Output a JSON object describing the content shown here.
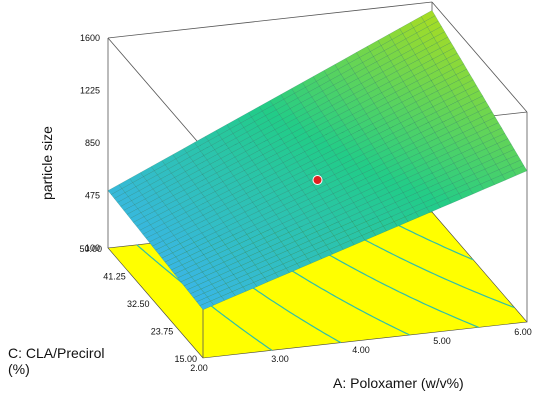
{
  "chart_data": {
    "type": "surface",
    "zlabel": "particle size",
    "xlabel": "A: Poloxamer (w/v%)",
    "ylabel": "C: CLA/Precirol (%)",
    "x_ticks": [
      "2.00",
      "3.00",
      "4.00",
      "5.00",
      "6.00"
    ],
    "y_ticks": [
      "15.00",
      "23.75",
      "32.50",
      "41.25",
      "50.00"
    ],
    "z_ticks": [
      "100",
      "475",
      "850",
      "1225",
      "1600"
    ],
    "xlim": [
      2,
      6
    ],
    "ylim": [
      15,
      50
    ],
    "zlim": [
      100,
      1600
    ],
    "surface_corners": [
      {
        "x": 2,
        "y": 15,
        "z": 445
      },
      {
        "x": 6,
        "y": 15,
        "z": 1180
      },
      {
        "x": 6,
        "y": 50,
        "z": 1540
      },
      {
        "x": 2,
        "y": 50,
        "z": 510
      }
    ],
    "design_point": {
      "x": 4,
      "y": 32.5,
      "z": 850
    },
    "colors": {
      "surface_low": "#3ab6e6",
      "surface_mid": "#22cc88",
      "surface_high": "#aadd22",
      "floor": "#ffff00",
      "contour": "#2fbfaa",
      "point": "#e02020"
    }
  }
}
